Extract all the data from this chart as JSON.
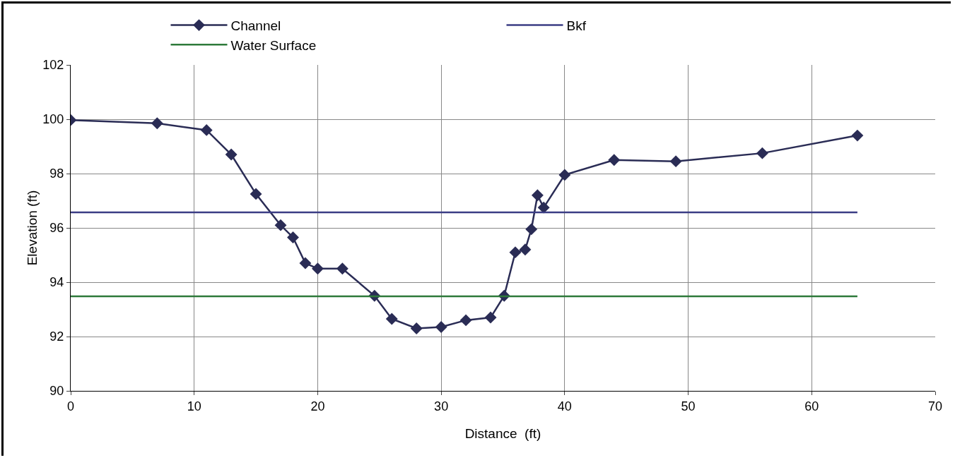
{
  "chart_data": {
    "type": "line",
    "xlabel": "Distance  (ft)",
    "ylabel": "Elevation (ft)",
    "xlim": [
      0,
      70
    ],
    "xticks": [
      0,
      10,
      20,
      30,
      40,
      50,
      60,
      70
    ],
    "ylim": [
      90,
      102
    ],
    "yticks": [
      90,
      92,
      94,
      96,
      98,
      100,
      102
    ],
    "grid": true,
    "legend": "top",
    "series": [
      {
        "name": "Channel",
        "color": "#2a2c55",
        "marker": "diamond",
        "x": [
          0,
          7,
          11,
          13,
          15,
          17,
          18,
          19,
          20,
          22,
          24.6,
          26,
          28,
          30,
          32,
          34,
          35.1,
          36,
          36.8,
          37.3,
          37.8,
          38.3,
          40,
          44,
          49,
          56,
          63.7
        ],
        "values": [
          99.97,
          99.85,
          99.6,
          98.7,
          97.25,
          96.1,
          95.65,
          94.7,
          94.5,
          94.5,
          93.5,
          92.65,
          92.3,
          92.35,
          92.6,
          92.7,
          93.5,
          95.1,
          95.2,
          95.95,
          97.2,
          96.75,
          97.95,
          98.5,
          98.45,
          98.75,
          99.4
        ]
      },
      {
        "name": "Bkf",
        "color": "#3b3d85",
        "marker": "none",
        "x": [
          0,
          63.7
        ],
        "values": [
          96.57,
          96.57
        ]
      },
      {
        "name": "Water Surface",
        "color": "#2e7a3a",
        "marker": "none",
        "x": [
          0,
          63.7
        ],
        "values": [
          93.48,
          93.48
        ]
      }
    ]
  }
}
